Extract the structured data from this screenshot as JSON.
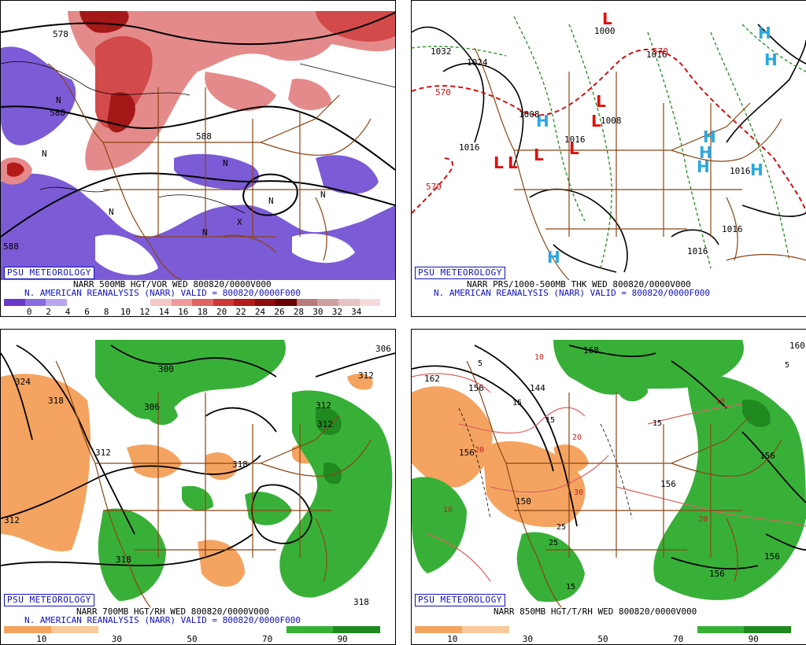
{
  "branding": "PSU METEOROLOGY",
  "panels": {
    "tl": {
      "caption1": "NARR 500MB HGT/VOR WED 800820/0000V000",
      "caption2": "N. AMERICAN REANALYSIS (NARR) VALID = 800820/0000F000",
      "contour_labels": [
        "578",
        "588",
        "588",
        "588",
        "N",
        "N",
        "N",
        "N",
        "N",
        "N",
        "N",
        "X"
      ],
      "colorbar_labels": [
        "0",
        "2",
        "4",
        "6",
        "8",
        "10",
        "12",
        "14",
        "16",
        "18",
        "20",
        "22",
        "24",
        "26",
        "28",
        "30",
        "32",
        "34"
      ],
      "colorbar_colors": [
        "#6a39c9",
        "#8a6be0",
        "#b7a6ef",
        "#ffffff",
        "#ffffff",
        "#ffffff",
        "#ffffff",
        "#f6c6c6",
        "#ef9a9a",
        "#e06464",
        "#cf3838",
        "#b41a1a",
        "#8c0d0d",
        "#6b0000",
        "#b87a7a",
        "#cfa0a0",
        "#e6c3c3",
        "#f5dcdc"
      ]
    },
    "tr": {
      "caption1": "NARR PRS/1000-500MB THK WED 800820/0000V000",
      "caption2": "N. AMERICAN REANALYSIS (NARR) VALID = 800820/0000F000",
      "isobar_labels": [
        "1032",
        "1024",
        "1016",
        "1016",
        "1016",
        "1008",
        "1000",
        "1016",
        "1008",
        "1016",
        "1016"
      ],
      "thickness_labels": [
        "570",
        "570",
        "570"
      ],
      "high_symbol": "H",
      "low_symbol": "L"
    },
    "bl": {
      "caption1": "NARR 700MB HGT/RH WED 800820/0000V000",
      "caption2": "N. AMERICAN REANALYSIS (NARR) VALID = 800820/0000F000",
      "contour_labels": [
        "324",
        "318",
        "312",
        "312",
        "306",
        "300",
        "306",
        "312",
        "312",
        "318",
        "318",
        "318",
        "312"
      ],
      "colorbar_labels": [
        "10",
        "30",
        "50",
        "70",
        "90"
      ],
      "colorbar_colors": [
        "#f4a460",
        "#f8c99a",
        "#ffffff",
        "#ffffff",
        "#ffffff",
        "#ffffff",
        "#38b038",
        "#1f8a1f"
      ]
    },
    "br": {
      "caption1": "NARR 850MB HGT/T/RH WED 800820/0000V000",
      "contour_labels": [
        "162",
        "156",
        "156",
        "150",
        "156",
        "144",
        "168",
        "160",
        "156",
        "156",
        "156"
      ],
      "temp_labels": [
        "5",
        "5",
        "10",
        "10",
        "10",
        "15",
        "15",
        "15",
        "15",
        "20",
        "20",
        "20",
        "25",
        "25",
        "30"
      ],
      "colorbar_labels": [
        "10",
        "30",
        "50",
        "70",
        "90"
      ],
      "colorbar_colors": [
        "#f4a460",
        "#f8c99a",
        "#ffffff",
        "#ffffff",
        "#ffffff",
        "#ffffff",
        "#38b038",
        "#1f8a1f"
      ]
    }
  }
}
